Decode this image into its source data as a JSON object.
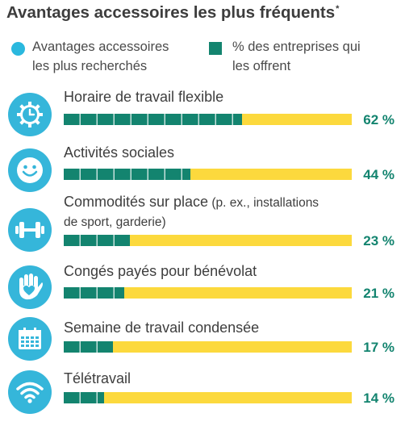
{
  "title": "Avantages accessoires les plus fréquents",
  "title_mark": "*",
  "legend": {
    "left": {
      "line1": "Avantages accessoires",
      "line2": "les plus recherchés",
      "color": "#2ab8de"
    },
    "right": {
      "line1": "% des entreprises qui",
      "line2": "les offrent",
      "color": "#13846f"
    }
  },
  "chart_data": {
    "type": "bar",
    "orientation": "horizontal",
    "categories": [
      "Horaire de travail flexible",
      "Activités sociales",
      "Commodités sur place (p. ex., installations de sport, garderie)",
      "Congés payés pour bénévolat",
      "Semaine de travail condensée",
      "Télétravail"
    ],
    "series": [
      {
        "name": "% des entreprises qui les offrent",
        "values": [
          62,
          44,
          23,
          21,
          17,
          14
        ],
        "color": "#13846f"
      }
    ],
    "value_labels": [
      "62 %",
      "44 %",
      "23 %",
      "21 %",
      "17 %",
      "14 %"
    ],
    "xlim": [
      0,
      100
    ],
    "track_color": "#fcd93d"
  },
  "rows": [
    {
      "label": "Horaire de travail flexible",
      "pct": "62 %",
      "icon": "clock-gear-icon"
    },
    {
      "label": "Activités sociales",
      "pct": "44 %",
      "icon": "smiley-icon"
    },
    {
      "label": "Commodités sur place",
      "label_small": " (p. ex., installations",
      "label_line2": "de sport, garderie)",
      "pct": "23 %",
      "icon": "dumbbell-icon"
    },
    {
      "label": "Congés payés pour bénévolat",
      "pct": "21 %",
      "icon": "heart-hand-icon"
    },
    {
      "label": "Semaine de travail condensée",
      "pct": "17 %",
      "icon": "calendar-icon"
    },
    {
      "label": "Télétravail",
      "pct": "14 %",
      "icon": "wifi-icon"
    }
  ]
}
